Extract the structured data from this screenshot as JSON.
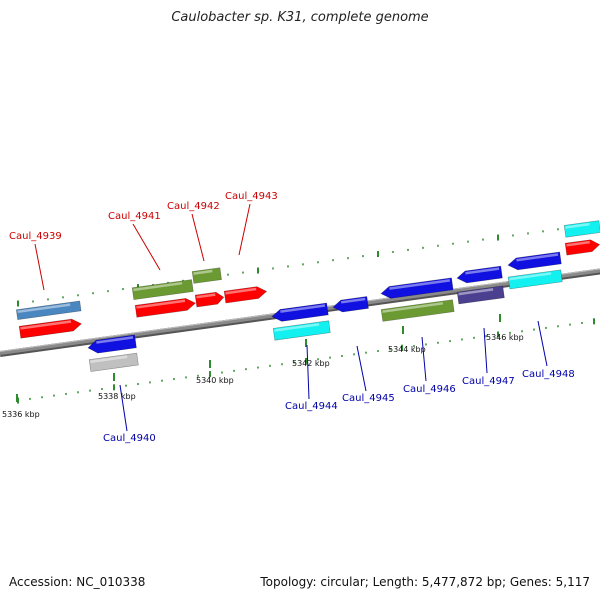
{
  "title": "Caulobacter sp. K31, complete genome",
  "footer": {
    "accession_label": "Accession: NC_010338",
    "topology_label": "Topology: circular; Length: 5,477,872 bp; Genes: 5,117"
  },
  "colors": {
    "backbone": "#8a8a8a",
    "dots": "#2e8b2e",
    "forward_label": "#cc0000",
    "reverse_label": "#0000aa",
    "red": "#ff0000",
    "blue": "#1010e0",
    "steelblue": "#4a86c0",
    "olive": "#6b9a32",
    "cyan": "#12f0f0",
    "gray": "#c0c0c0",
    "purple": "#4b3f8f"
  },
  "ticks": [
    {
      "label": "5336 kbp"
    },
    {
      "label": "5338 kbp"
    },
    {
      "label": "5340 kbp"
    },
    {
      "label": "5342 kbp"
    },
    {
      "label": "5344 kbp"
    },
    {
      "label": "5346 kbp"
    }
  ],
  "labels": [
    {
      "id": "Caul_4939",
      "strand": "forward"
    },
    {
      "id": "Caul_4941",
      "strand": "forward"
    },
    {
      "id": "Caul_4942",
      "strand": "forward"
    },
    {
      "id": "Caul_4943",
      "strand": "forward"
    },
    {
      "id": "Caul_4940",
      "strand": "reverse"
    },
    {
      "id": "Caul_4944",
      "strand": "reverse"
    },
    {
      "id": "Caul_4945",
      "strand": "reverse"
    },
    {
      "id": "Caul_4946",
      "strand": "reverse"
    },
    {
      "id": "Caul_4947",
      "strand": "reverse"
    },
    {
      "id": "Caul_4948",
      "strand": "reverse"
    }
  ],
  "features": [
    {
      "color": "steelblue",
      "dir": "none"
    },
    {
      "color": "red",
      "dir": "right"
    },
    {
      "color": "olive",
      "dir": "none"
    },
    {
      "color": "olive",
      "dir": "none"
    },
    {
      "color": "red",
      "dir": "right"
    },
    {
      "color": "red",
      "dir": "right"
    },
    {
      "color": "red",
      "dir": "right"
    },
    {
      "color": "blue",
      "dir": "left"
    },
    {
      "color": "gray",
      "dir": "none"
    },
    {
      "color": "blue",
      "dir": "left"
    },
    {
      "color": "cyan",
      "dir": "none"
    },
    {
      "color": "blue",
      "dir": "left"
    },
    {
      "color": "blue",
      "dir": "left"
    },
    {
      "color": "olive",
      "dir": "none"
    },
    {
      "color": "blue",
      "dir": "left"
    },
    {
      "color": "purple",
      "dir": "none"
    },
    {
      "color": "blue",
      "dir": "left"
    },
    {
      "color": "cyan",
      "dir": "none"
    },
    {
      "color": "cyan",
      "dir": "none"
    },
    {
      "color": "red",
      "dir": "right"
    }
  ]
}
